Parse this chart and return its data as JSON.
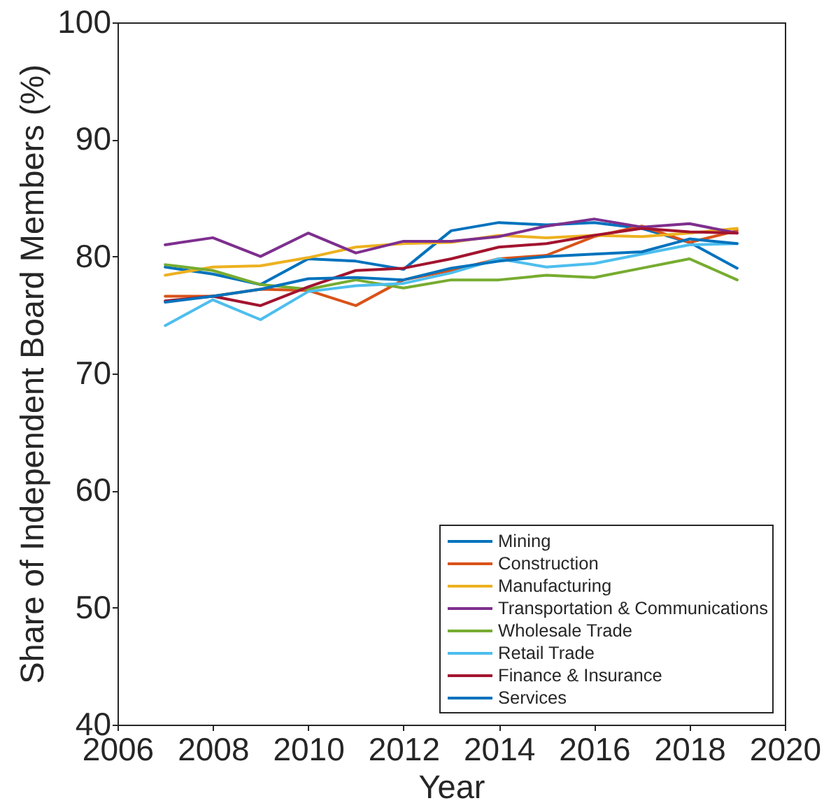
{
  "chart_data": {
    "type": "line",
    "xlabel": "Year",
    "ylabel": "Share of Independent Board Members (%)",
    "x": [
      2007,
      2008,
      2009,
      2010,
      2011,
      2012,
      2013,
      2014,
      2015,
      2016,
      2017,
      2018,
      2019
    ],
    "series": [
      {
        "name": "Mining",
        "color": "#0072bd",
        "values": [
          79.1,
          78.5,
          77.6,
          79.8,
          79.6,
          78.9,
          82.2,
          82.9,
          82.7,
          82.9,
          82.4,
          81.2,
          79.0
        ]
      },
      {
        "name": "Construction",
        "color": "#d95319",
        "values": [
          76.6,
          76.6,
          77.2,
          77.1,
          75.8,
          78.0,
          78.8,
          79.8,
          80.1,
          81.7,
          82.6,
          81.2,
          82.2
        ]
      },
      {
        "name": "Manufacturing",
        "color": "#edb120",
        "values": [
          78.4,
          79.1,
          79.2,
          79.9,
          80.8,
          81.1,
          81.2,
          81.8,
          81.6,
          81.8,
          81.7,
          82.0,
          82.4
        ]
      },
      {
        "name": "Transportation & Communications",
        "color": "#7e2f8e",
        "values": [
          81.0,
          81.6,
          80.0,
          82.0,
          80.3,
          81.3,
          81.3,
          81.7,
          82.6,
          83.2,
          82.5,
          82.8,
          82.0
        ]
      },
      {
        "name": "Wholesale Trade",
        "color": "#77ac30",
        "values": [
          79.3,
          78.8,
          77.6,
          77.2,
          78.0,
          77.3,
          78.0,
          78.0,
          78.4,
          78.2,
          79.0,
          79.8,
          78.0
        ]
      },
      {
        "name": "Retail Trade",
        "color": "#4dbeee",
        "values": [
          74.1,
          76.3,
          74.6,
          77.0,
          77.5,
          77.7,
          78.6,
          79.8,
          79.1,
          79.4,
          80.2,
          81.0,
          81.1
        ]
      },
      {
        "name": "Finance & Insurance",
        "color": "#a2142f",
        "values": [
          76.2,
          76.6,
          75.8,
          77.4,
          78.8,
          79.0,
          79.8,
          80.8,
          81.1,
          81.8,
          82.4,
          82.1,
          82.0
        ]
      },
      {
        "name": "Services",
        "color": "#0072bd",
        "values": [
          76.1,
          76.6,
          77.2,
          78.1,
          78.2,
          78.0,
          79.0,
          79.6,
          80.0,
          80.2,
          80.4,
          81.5,
          81.1
        ]
      }
    ],
    "xlim": [
      2006,
      2020
    ],
    "xticks": [
      2006,
      2008,
      2010,
      2012,
      2014,
      2016,
      2018,
      2020
    ],
    "ylim": [
      40,
      100
    ],
    "yticks": [
      40,
      50,
      60,
      70,
      80,
      90,
      100
    ],
    "grid": false,
    "legend": "bottom right",
    "line_style": "solid"
  }
}
